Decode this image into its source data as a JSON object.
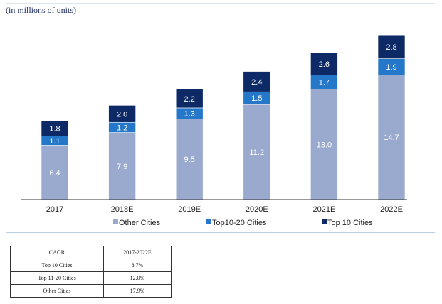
{
  "unit_note": "(in millions of units)",
  "colors": {
    "other": "#9aaace",
    "top10_20": "#2477c9",
    "top10": "#0d2a67",
    "axis": "#333333",
    "tick_text": "#222222",
    "label_light": "#ffffff"
  },
  "chart_data": {
    "type": "bar",
    "stacked": true,
    "categories": [
      "2017",
      "2018E",
      "2019E",
      "2020E",
      "2021E",
      "2022E"
    ],
    "series": [
      {
        "name": "Other Cities",
        "color": "#9aaace",
        "values": [
          6.4,
          7.9,
          9.5,
          11.2,
          13.0,
          14.7
        ]
      },
      {
        "name": "Top10-20 Cities",
        "color": "#2477c9",
        "values": [
          1.1,
          1.2,
          1.3,
          1.5,
          1.7,
          1.9
        ]
      },
      {
        "name": "Top 10 Cities",
        "color": "#0d2a67",
        "values": [
          1.8,
          2.0,
          2.2,
          2.4,
          2.6,
          2.8
        ]
      }
    ],
    "value_labels": [
      [
        "6.4",
        "7.9",
        "9.5",
        "11.2",
        "13.0",
        "14.7"
      ],
      [
        "1.1",
        "1.2",
        "1.3",
        "1.5",
        "1.7",
        "1.9"
      ],
      [
        "1.8",
        "2.0",
        "2.2",
        "2.4",
        "2.6",
        "2.8"
      ]
    ],
    "ylim": [
      0,
      20
    ],
    "legend_position": "bottom",
    "grid": false
  },
  "table": {
    "header": [
      "CAGR",
      "2017-2022E"
    ],
    "rows": [
      [
        "Top 10 Cities",
        "8.7%"
      ],
      [
        "Top 11-20 Cities",
        "12.0%"
      ],
      [
        "Other Cities",
        "17.9%"
      ]
    ]
  }
}
